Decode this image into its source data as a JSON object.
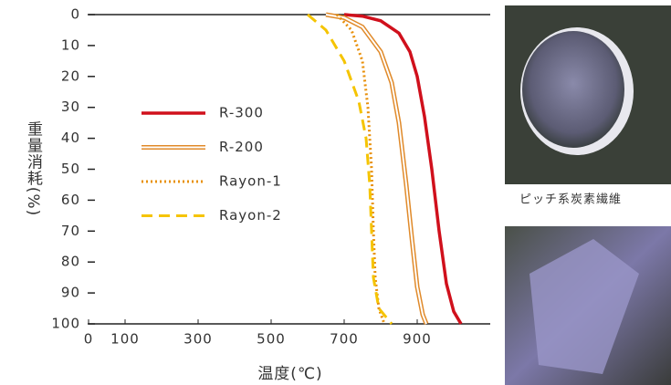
{
  "chart_data": {
    "type": "line",
    "x_label": "温度(℃)",
    "y_label": "重量消耗(%)",
    "xlim": [
      0,
      1100
    ],
    "ylim": [
      0,
      100
    ],
    "xticks": [
      0,
      100,
      300,
      500,
      700,
      900
    ],
    "yticks": [
      0,
      10,
      20,
      30,
      40,
      50,
      60,
      70,
      80,
      90,
      100
    ],
    "y_inverted": true,
    "series": [
      {
        "name": "R-300",
        "color": "#d0101c",
        "style": "solid",
        "x": [
          700,
          750,
          800,
          850,
          880,
          900,
          920,
          940,
          960,
          980,
          1000,
          1020
        ],
        "values": [
          0,
          0.5,
          2,
          6,
          12,
          20,
          33,
          50,
          70,
          87,
          96,
          100
        ]
      },
      {
        "name": "R-200",
        "color": "#e08a2a",
        "style": "double",
        "x": [
          650,
          700,
          750,
          800,
          830,
          850,
          870,
          885,
          900,
          915,
          925
        ],
        "values": [
          0,
          1,
          4,
          12,
          22,
          35,
          55,
          72,
          88,
          97,
          100
        ]
      },
      {
        "name": "Rayon-1",
        "color": "#e8900a",
        "style": "dotted",
        "x": [
          680,
          720,
          750,
          765,
          775,
          780,
          785,
          795,
          810
        ],
        "values": [
          0,
          5,
          15,
          30,
          50,
          70,
          85,
          95,
          100
        ]
      },
      {
        "name": "Rayon-2",
        "color": "#f5c400",
        "style": "dashed",
        "x": [
          600,
          650,
          700,
          740,
          760,
          770,
          775,
          780,
          795,
          830
        ],
        "values": [
          0,
          5,
          15,
          28,
          40,
          55,
          70,
          85,
          95,
          100
        ]
      }
    ],
    "image_caption": "ピッチ系炭素繊維"
  }
}
